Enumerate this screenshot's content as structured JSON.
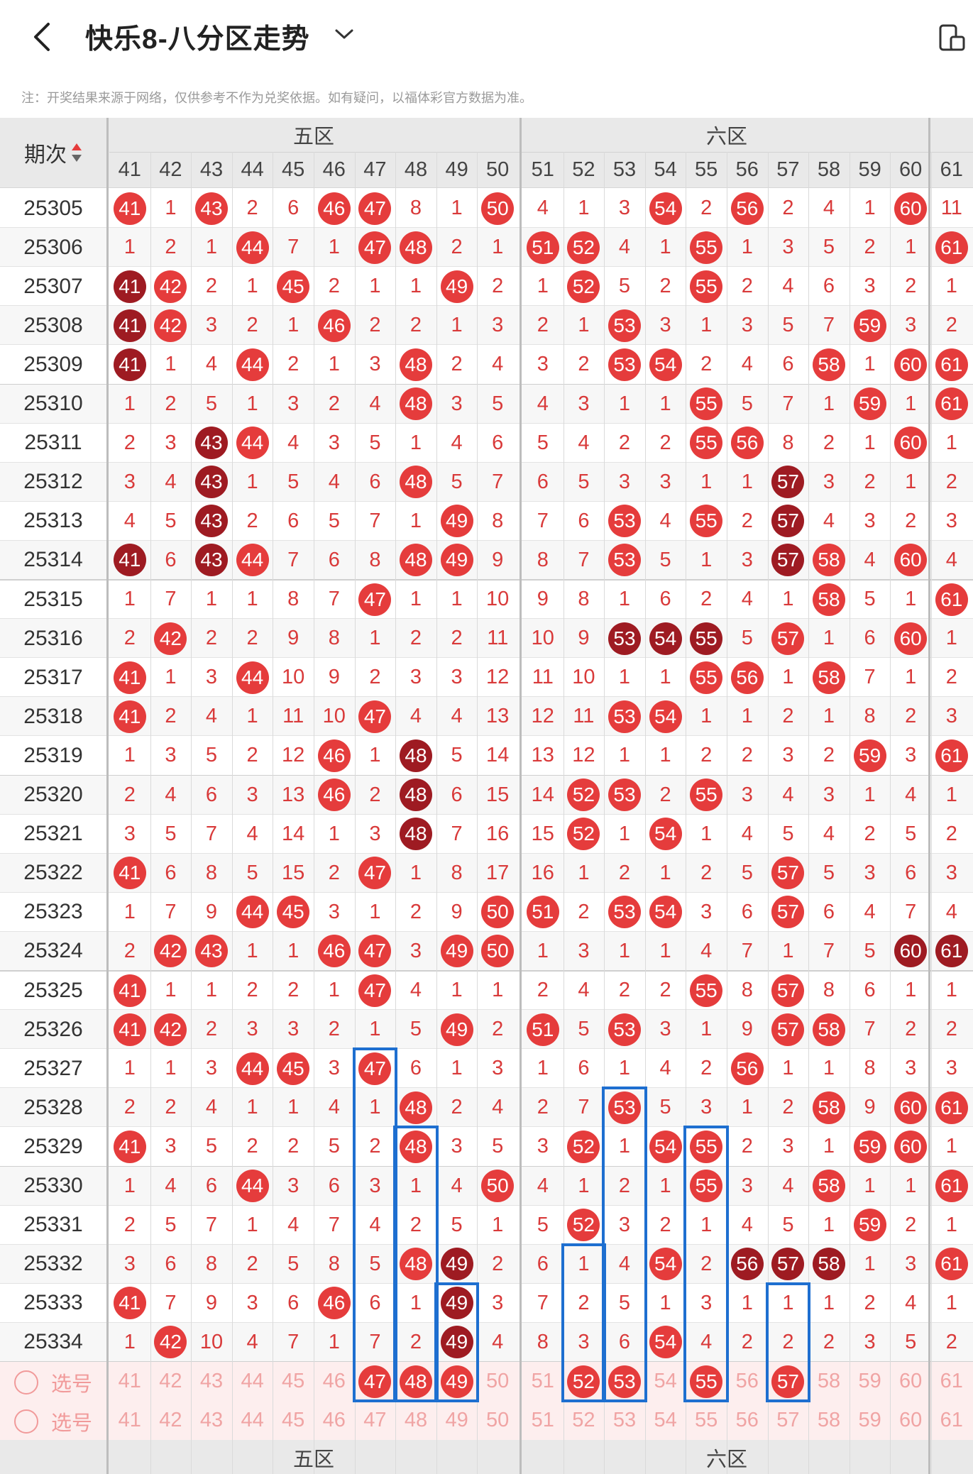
{
  "header": {
    "title": "快乐8-八分区走势",
    "back_icon": "chevron-left-icon",
    "dropdown_icon": "chevron-down-icon",
    "device_icon": "phone-tablet-icon"
  },
  "note": "注：开奖结果来源于网络，仅供参考不作为兑奖依据。如有疑问，以福体彩官方数据为准。",
  "table": {
    "period_header": "期次",
    "zones": [
      {
        "label": "五区",
        "cols": [
          41,
          42,
          43,
          44,
          45,
          46,
          47,
          48,
          49,
          50
        ]
      },
      {
        "label": "六区",
        "cols": [
          51,
          52,
          53,
          54,
          55,
          56,
          57,
          58,
          59,
          60
        ]
      }
    ],
    "partial_column": 61,
    "rows": [
      {
        "p": "25305",
        "v": [
          41,
          1,
          43,
          2,
          6,
          46,
          47,
          8,
          1,
          50,
          4,
          1,
          3,
          54,
          2,
          56,
          2,
          4,
          1,
          60,
          11
        ]
      },
      {
        "p": "25306",
        "v": [
          1,
          2,
          1,
          44,
          7,
          1,
          47,
          48,
          2,
          1,
          51,
          52,
          4,
          1,
          55,
          1,
          3,
          5,
          2,
          1,
          61
        ]
      },
      {
        "p": "25307",
        "v": [
          41,
          42,
          2,
          1,
          45,
          2,
          1,
          1,
          49,
          2,
          1,
          52,
          5,
          2,
          55,
          2,
          4,
          6,
          3,
          2,
          1
        ]
      },
      {
        "p": "25308",
        "v": [
          41,
          42,
          3,
          2,
          1,
          46,
          2,
          2,
          1,
          3,
          2,
          1,
          53,
          3,
          1,
          3,
          5,
          7,
          59,
          3,
          2
        ]
      },
      {
        "p": "25309",
        "v": [
          41,
          1,
          4,
          44,
          2,
          1,
          3,
          48,
          2,
          4,
          3,
          2,
          53,
          54,
          2,
          4,
          6,
          58,
          1,
          60,
          61
        ]
      },
      {
        "p": "25310",
        "v": [
          1,
          2,
          5,
          1,
          3,
          2,
          4,
          48,
          3,
          5,
          4,
          3,
          1,
          1,
          55,
          5,
          7,
          1,
          59,
          1,
          61
        ]
      },
      {
        "p": "25311",
        "v": [
          2,
          3,
          43,
          44,
          4,
          3,
          5,
          1,
          4,
          6,
          5,
          4,
          2,
          2,
          55,
          56,
          8,
          2,
          1,
          60,
          1
        ]
      },
      {
        "p": "25312",
        "v": [
          3,
          4,
          43,
          1,
          5,
          4,
          6,
          48,
          5,
          7,
          6,
          5,
          3,
          3,
          1,
          1,
          57,
          3,
          2,
          1,
          2
        ]
      },
      {
        "p": "25313",
        "v": [
          4,
          5,
          43,
          2,
          6,
          5,
          7,
          1,
          49,
          8,
          7,
          6,
          53,
          4,
          55,
          2,
          57,
          4,
          3,
          2,
          3
        ]
      },
      {
        "p": "25314",
        "v": [
          41,
          6,
          43,
          44,
          7,
          6,
          8,
          48,
          49,
          9,
          8,
          7,
          53,
          5,
          1,
          3,
          57,
          58,
          4,
          60,
          4
        ]
      },
      {
        "p": "25315",
        "v": [
          1,
          7,
          1,
          1,
          8,
          7,
          47,
          1,
          1,
          10,
          9,
          8,
          1,
          6,
          2,
          4,
          1,
          58,
          5,
          1,
          61
        ]
      },
      {
        "p": "25316",
        "v": [
          2,
          42,
          2,
          2,
          9,
          8,
          1,
          2,
          2,
          11,
          10,
          9,
          53,
          54,
          55,
          5,
          57,
          1,
          6,
          60,
          1
        ]
      },
      {
        "p": "25317",
        "v": [
          41,
          1,
          3,
          44,
          10,
          9,
          2,
          3,
          3,
          12,
          11,
          10,
          1,
          1,
          55,
          56,
          1,
          58,
          7,
          1,
          2
        ]
      },
      {
        "p": "25318",
        "v": [
          41,
          2,
          4,
          1,
          11,
          10,
          47,
          4,
          4,
          13,
          12,
          11,
          53,
          54,
          1,
          1,
          2,
          1,
          8,
          2,
          3
        ]
      },
      {
        "p": "25319",
        "v": [
          1,
          3,
          5,
          2,
          12,
          46,
          1,
          48,
          5,
          14,
          13,
          12,
          1,
          1,
          2,
          2,
          3,
          2,
          59,
          3,
          61
        ]
      },
      {
        "p": "25320",
        "v": [
          2,
          4,
          6,
          3,
          13,
          46,
          2,
          48,
          6,
          15,
          14,
          52,
          53,
          2,
          55,
          3,
          4,
          3,
          1,
          4,
          1
        ]
      },
      {
        "p": "25321",
        "v": [
          3,
          5,
          7,
          4,
          14,
          1,
          3,
          48,
          7,
          16,
          15,
          52,
          1,
          54,
          1,
          4,
          5,
          4,
          2,
          5,
          2
        ]
      },
      {
        "p": "25322",
        "v": [
          41,
          6,
          8,
          5,
          15,
          2,
          47,
          1,
          8,
          17,
          16,
          1,
          2,
          1,
          2,
          5,
          57,
          5,
          3,
          6,
          3
        ]
      },
      {
        "p": "25323",
        "v": [
          1,
          7,
          9,
          44,
          45,
          3,
          1,
          2,
          9,
          50,
          51,
          2,
          53,
          54,
          3,
          6,
          57,
          6,
          4,
          7,
          4
        ]
      },
      {
        "p": "25324",
        "v": [
          2,
          42,
          43,
          1,
          1,
          46,
          47,
          3,
          49,
          50,
          1,
          3,
          1,
          1,
          4,
          7,
          1,
          7,
          5,
          60,
          61
        ]
      },
      {
        "p": "25325",
        "v": [
          41,
          1,
          1,
          2,
          2,
          1,
          47,
          4,
          1,
          1,
          2,
          4,
          2,
          2,
          55,
          8,
          57,
          8,
          6,
          1,
          1
        ]
      },
      {
        "p": "25326",
        "v": [
          41,
          42,
          2,
          3,
          3,
          2,
          1,
          5,
          49,
          2,
          51,
          5,
          53,
          3,
          1,
          9,
          57,
          58,
          7,
          2,
          2
        ]
      },
      {
        "p": "25327",
        "v": [
          1,
          1,
          3,
          44,
          45,
          3,
          47,
          6,
          1,
          3,
          1,
          6,
          1,
          4,
          2,
          56,
          1,
          1,
          8,
          3,
          3
        ]
      },
      {
        "p": "25328",
        "v": [
          2,
          2,
          4,
          1,
          1,
          4,
          1,
          48,
          2,
          4,
          2,
          7,
          53,
          5,
          3,
          1,
          2,
          58,
          9,
          60,
          61
        ]
      },
      {
        "p": "25329",
        "v": [
          41,
          3,
          5,
          2,
          2,
          5,
          2,
          48,
          3,
          5,
          3,
          52,
          1,
          54,
          55,
          2,
          3,
          1,
          59,
          60,
          1
        ]
      },
      {
        "p": "25330",
        "v": [
          1,
          4,
          6,
          44,
          3,
          6,
          3,
          1,
          4,
          50,
          4,
          1,
          2,
          1,
          55,
          3,
          4,
          58,
          1,
          1,
          61
        ]
      },
      {
        "p": "25331",
        "v": [
          2,
          5,
          7,
          1,
          4,
          7,
          4,
          2,
          5,
          1,
          5,
          52,
          3,
          2,
          1,
          4,
          5,
          1,
          59,
          2,
          1
        ]
      },
      {
        "p": "25332",
        "v": [
          3,
          6,
          8,
          2,
          5,
          8,
          5,
          48,
          49,
          2,
          6,
          1,
          4,
          54,
          2,
          56,
          57,
          58,
          1,
          3,
          61
        ]
      },
      {
        "p": "25333",
        "v": [
          41,
          7,
          9,
          3,
          6,
          46,
          6,
          1,
          49,
          3,
          7,
          2,
          5,
          1,
          3,
          1,
          1,
          1,
          2,
          4,
          1
        ]
      },
      {
        "p": "25334",
        "v": [
          1,
          42,
          10,
          4,
          7,
          1,
          7,
          2,
          49,
          4,
          8,
          3,
          6,
          54,
          4,
          2,
          2,
          2,
          3,
          5,
          2
        ]
      }
    ],
    "dark_balls": [
      "25307-41",
      "25308-41",
      "25309-41",
      "25311-43",
      "25312-43",
      "25313-43",
      "25314-41",
      "25314-43",
      "25312-57",
      "25313-57",
      "25314-57",
      "25316-53",
      "25316-54",
      "25316-55",
      "25319-48",
      "25320-48",
      "25321-48",
      "25324-60",
      "25324-61",
      "25332-49",
      "25333-49",
      "25334-49",
      "25332-56",
      "25332-57",
      "25332-58"
    ],
    "select_rows": [
      {
        "label": "选号",
        "picked": [
          47,
          48,
          49,
          52,
          53,
          55,
          57
        ]
      },
      {
        "label": "选号",
        "picked": []
      }
    ]
  },
  "colors": {
    "ball_red": "#e53c3c",
    "ball_dark": "#9e1b22",
    "miss_text": "#d93a3a",
    "highlight_box": "#1e6fd0"
  }
}
